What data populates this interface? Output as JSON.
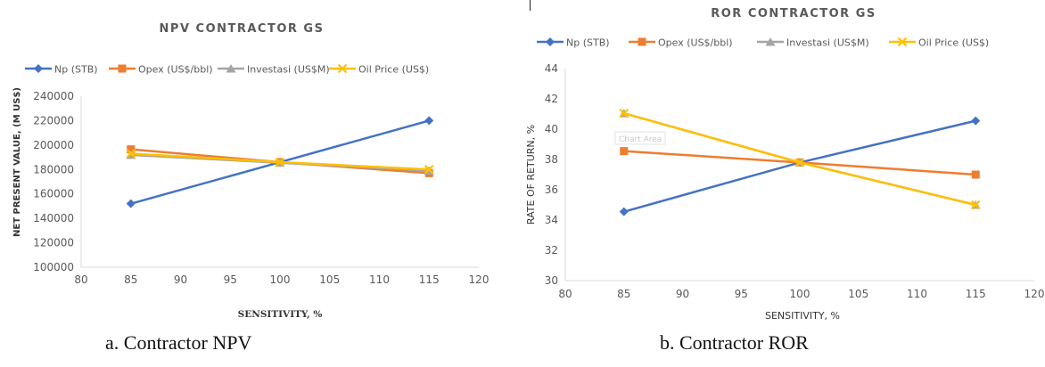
{
  "colors": {
    "np": "#4472C4",
    "opex": "#ED7D31",
    "investasi": "#A5A5A5",
    "oil_price": "#FFC000",
    "axis": "#595959",
    "grid_axis_line": "#d9d9d9"
  },
  "captions": {
    "a": "a.    Contractor NPV",
    "b": "b. Contractor ROR"
  },
  "chart_data": [
    {
      "type": "line",
      "title": "NPV CONTRACTOR GS",
      "xlabel": "SENSITIVITY, %",
      "ylabel": "NET PRESENT VALUE, (M US$)",
      "xlim": [
        80,
        120
      ],
      "xticks": [
        80,
        85,
        90,
        95,
        100,
        105,
        110,
        115,
        120
      ],
      "ylim": [
        100000,
        240000
      ],
      "yticks": [
        100000,
        120000,
        140000,
        160000,
        180000,
        200000,
        220000,
        240000
      ],
      "grid": false,
      "legend": "top",
      "x": [
        85,
        100,
        115
      ],
      "series": [
        {
          "name": "Np (STB)",
          "marker": "diamond",
          "color": "#4472C4",
          "values": [
            152000,
            186000,
            220000
          ]
        },
        {
          "name": "Opex (US$/bbl)",
          "marker": "square",
          "color": "#ED7D31",
          "values": [
            196500,
            186000,
            177000
          ]
        },
        {
          "name": "Investasi (US$M)",
          "marker": "triangle",
          "color": "#A5A5A5",
          "values": [
            192000,
            185500,
            179000
          ]
        },
        {
          "name": "Oil Price (US$)",
          "marker": "x",
          "color": "#FFC000",
          "values": [
            193000,
            186000,
            180000
          ]
        }
      ]
    },
    {
      "type": "line",
      "title": "ROR CONTRACTOR GS",
      "xlabel": "SENSITIVITY, %",
      "ylabel": "RATE OF RETURN, %",
      "xlim": [
        80,
        120
      ],
      "xticks": [
        80,
        85,
        90,
        95,
        100,
        105,
        110,
        115,
        120
      ],
      "ylim": [
        30,
        44
      ],
      "yticks": [
        30,
        32,
        34,
        36,
        38,
        40,
        42,
        44
      ],
      "grid": false,
      "legend": "top",
      "annotation": "Chart Area",
      "x": [
        85,
        100,
        115
      ],
      "series": [
        {
          "name": "Np (STB)",
          "marker": "diamond",
          "color": "#4472C4",
          "values": [
            34.55,
            37.8,
            40.55
          ]
        },
        {
          "name": "Opex (US$/bbl)",
          "marker": "square",
          "color": "#ED7D31",
          "values": [
            38.55,
            37.8,
            37.0
          ]
        },
        {
          "name": "Investasi (US$M)",
          "marker": "triangle",
          "color": "#A5A5A5",
          "values": [
            41.05,
            37.8,
            35.0
          ]
        },
        {
          "name": "Oil Price (US$)",
          "marker": "x",
          "color": "#FFC000",
          "values": [
            41.05,
            37.8,
            35.0
          ]
        }
      ]
    }
  ]
}
